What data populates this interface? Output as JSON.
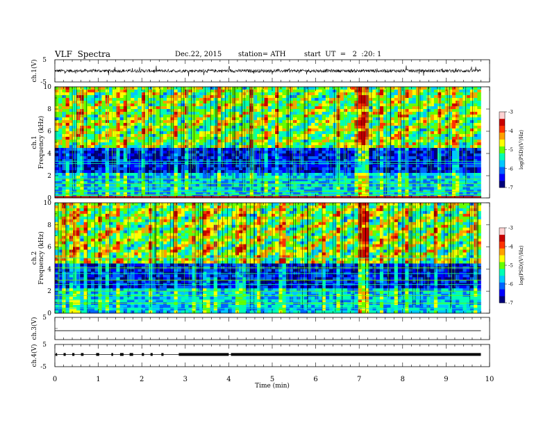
{
  "header": {
    "title": "VLF  Spectra",
    "date": "Dec.22, 2015",
    "station": "station= ATH",
    "start": "start  UT  =   2  :20: 1"
  },
  "chart_data": [
    {
      "type": "line",
      "ylabel": "ch.1(V)",
      "ylim": [
        -5,
        5
      ],
      "yticks": [
        "5",
        "-5"
      ],
      "description_values": {
        "baseline": 0,
        "typical_amplitude": 1
      }
    },
    {
      "type": "heatmap",
      "ylabel": "ch.1\nFrequency (kHz)",
      "ylim": [
        0,
        10
      ],
      "yticks": [
        "0",
        "2",
        "4",
        "6",
        "8",
        "10"
      ],
      "colorbar": {
        "label": "log(PSD)(V²/Hz)",
        "range": [
          -7,
          -3
        ],
        "ticks": [
          "-3",
          "-4",
          "-5",
          "-6",
          "-7"
        ]
      }
    },
    {
      "type": "heatmap",
      "ylabel": "ch.2\nFrequency (kHz)",
      "ylim": [
        0,
        10
      ],
      "yticks": [
        "0",
        "2",
        "4",
        "6",
        "8",
        "10"
      ],
      "colorbar": {
        "label": "log(PSD)(V²/Hz)",
        "range": [
          -7,
          -3
        ],
        "ticks": [
          "-3",
          "-4",
          "-5",
          "-6",
          "-7"
        ]
      }
    },
    {
      "type": "line",
      "ylabel": "ch.3(V)",
      "ylim": [
        -5,
        5
      ],
      "yticks": [
        "5"
      ]
    },
    {
      "type": "line",
      "ylabel": "ch.4(V)",
      "ylim": [
        -5,
        5
      ],
      "yticks": [
        "5",
        "-5"
      ]
    }
  ],
  "xaxis": {
    "label": "Time  (min)",
    "range": [
      0,
      10
    ],
    "ticks": [
      "0",
      "1",
      "2",
      "3",
      "4",
      "5",
      "6",
      "7",
      "8",
      "9",
      "10"
    ]
  },
  "colors": {
    "scale": [
      "#00007a",
      "#0000ff",
      "#0064ff",
      "#00c8ff",
      "#00ffb4",
      "#64ff00",
      "#ffff00",
      "#ffa000",
      "#ff3200",
      "#c80000",
      "#ffd2d2"
    ]
  }
}
